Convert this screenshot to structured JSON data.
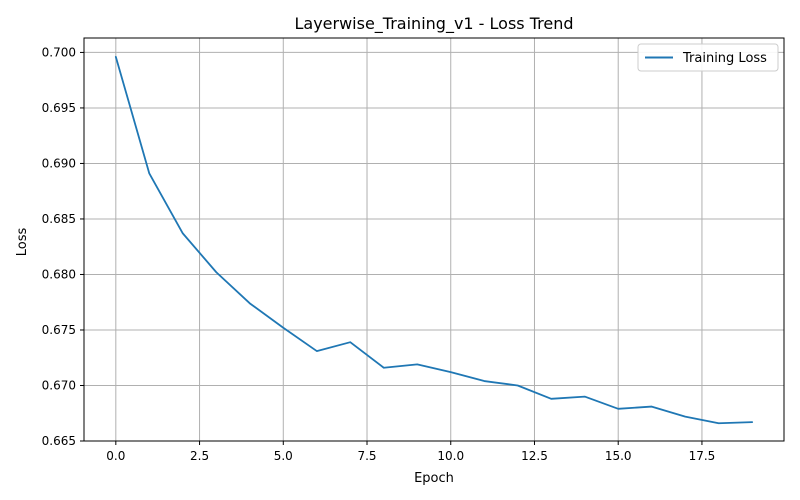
{
  "chart_data": {
    "type": "line",
    "title": "Layerwise_Training_v1 - Loss Trend",
    "xlabel": "Epoch",
    "ylabel": "Loss",
    "xlim": [
      -0.95,
      19.95
    ],
    "ylim": [
      0.665,
      0.7013
    ],
    "xticks": [
      0.0,
      2.5,
      5.0,
      7.5,
      10.0,
      12.5,
      15.0,
      17.5
    ],
    "xtick_labels": [
      "0.0",
      "2.5",
      "5.0",
      "7.5",
      "10.0",
      "12.5",
      "15.0",
      "17.5"
    ],
    "yticks": [
      0.665,
      0.67,
      0.675,
      0.68,
      0.685,
      0.69,
      0.695,
      0.7
    ],
    "ytick_labels": [
      "0.665",
      "0.670",
      "0.675",
      "0.680",
      "0.685",
      "0.690",
      "0.695",
      "0.700"
    ],
    "grid": true,
    "legend_position": "top-right",
    "series": [
      {
        "name": "Training Loss",
        "color": "#1f77b4",
        "x": [
          0,
          1,
          2,
          3,
          4,
          5,
          6,
          7,
          8,
          9,
          10,
          11,
          12,
          13,
          14,
          15,
          16,
          17,
          18,
          19
        ],
        "y": [
          0.6996,
          0.6891,
          0.6837,
          0.6802,
          0.6774,
          0.6752,
          0.6731,
          0.6739,
          0.6716,
          0.6719,
          0.6712,
          0.6704,
          0.67,
          0.6688,
          0.669,
          0.6679,
          0.6681,
          0.6672,
          0.6666,
          0.6667
        ]
      }
    ]
  }
}
